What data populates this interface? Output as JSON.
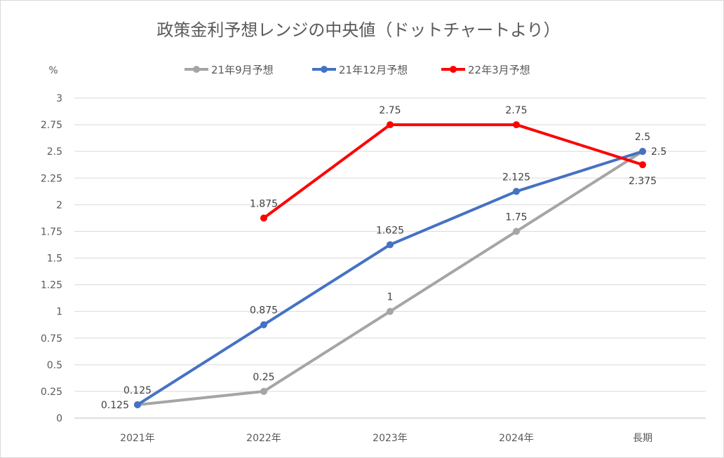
{
  "chart_data": {
    "type": "line",
    "title": "政策金利予想レンジの中央値（ドットチャートより）",
    "ylabel": "%",
    "xlabel": "",
    "categories": [
      "2021年",
      "2022年",
      "2023年",
      "2024年",
      "長期"
    ],
    "ylim": [
      0,
      3
    ],
    "yticks": [
      "0",
      "0.25",
      "0.5",
      "0.75",
      "1",
      "1.25",
      "1.5",
      "1.75",
      "2",
      "2.25",
      "2.5",
      "2.75",
      "3"
    ],
    "grid": true,
    "legend_position": "top",
    "series": [
      {
        "name": "21年9月予想",
        "color": "#a5a5a5",
        "values": [
          0.125,
          0.25,
          1,
          1.75,
          2.5
        ],
        "labels": [
          "0.125",
          "0.25",
          "1",
          "1.75",
          "2.5"
        ]
      },
      {
        "name": "21年12月予想",
        "color": "#4472c4",
        "values": [
          0.125,
          0.875,
          1.625,
          2.125,
          2.5
        ],
        "labels": [
          "0.125",
          "0.875",
          "1.625",
          "2.125",
          "2.5"
        ]
      },
      {
        "name": "22年3月予想",
        "color": "#ff0000",
        "values": [
          null,
          1.875,
          2.75,
          2.75,
          2.375
        ],
        "labels": [
          "",
          "1.875",
          "2.75",
          "2.75",
          "2.375"
        ]
      }
    ]
  }
}
